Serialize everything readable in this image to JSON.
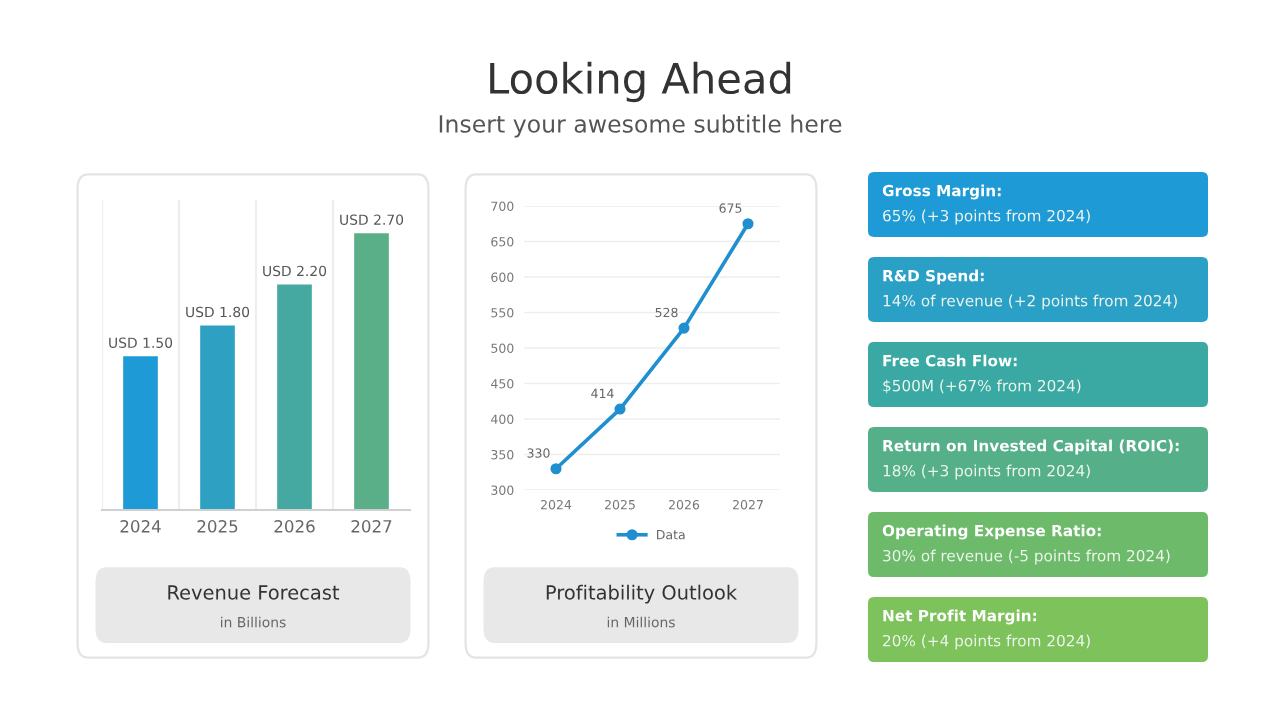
{
  "chart_data": [
    {
      "type": "bar",
      "title": "Revenue Forecast",
      "subtitle": "in Billions",
      "categories": [
        "2024",
        "2025",
        "2026",
        "2027"
      ],
      "values": [
        1.5,
        1.8,
        2.2,
        2.7
      ],
      "value_labels": [
        "USD 1.50",
        "USD 1.80",
        "USD 2.20",
        "USD 2.70"
      ],
      "colors": [
        "#1e9ad6",
        "#2ea1c2",
        "#45a9a2",
        "#5aaf88"
      ],
      "grid": "x"
    },
    {
      "type": "line",
      "title": "Profitability Outlook",
      "subtitle": "in Millions",
      "categories": [
        "2024",
        "2025",
        "2026",
        "2027"
      ],
      "series": [
        {
          "name": "Data",
          "color": "#1f8fd0",
          "values": [
            330,
            414,
            528,
            675
          ]
        }
      ],
      "ylim": [
        300,
        700
      ],
      "yticks": [
        300,
        350,
        400,
        450,
        500,
        550,
        600,
        650,
        700
      ],
      "grid": "y",
      "marker": "circle",
      "line_style": "solid",
      "data_labels": true,
      "legend": "bottom"
    },
    {
      "type": "other",
      "title": "Looking Ahead",
      "subtitle": "Insert your awesome subtitle here",
      "annotations": [
        "Gross Margin:",
        "65% (+3 points from 2024)",
        "R&D Spend:",
        "14% of revenue (+2 points from 2024)",
        "Free Cash Flow:",
        "$500M (+67% from 2024)",
        "Return on Invested Capital (ROIC):",
        "18% (+3 points from 2024)",
        "Operating Expense Ratio:",
        "30% of revenue (-5 points from 2024)",
        "Net Profit Margin:",
        "20% (+4 points from 2024)"
      ],
      "colors": [
        "#1e9ad6",
        "#2aa0c6",
        "#3aa9a3",
        "#55b08a",
        "#6cba6a",
        "#7dc25a"
      ]
    }
  ]
}
